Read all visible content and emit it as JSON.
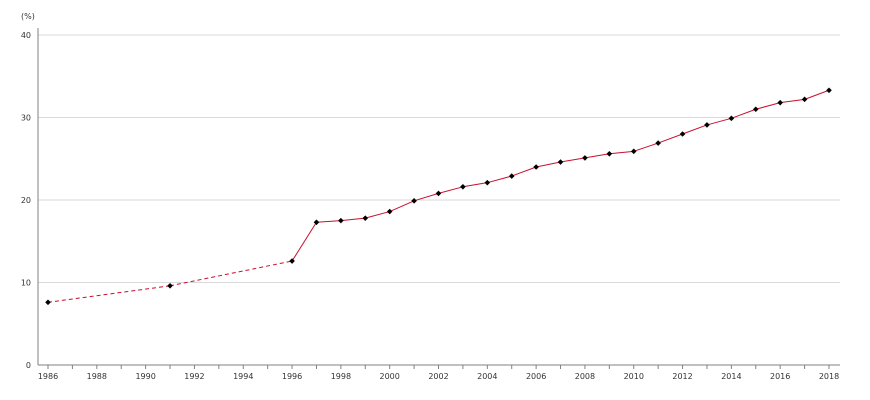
{
  "chart_data": {
    "type": "line",
    "title": "",
    "xlabel": "",
    "ylabel": "(%)",
    "xlim": [
      1986,
      2018
    ],
    "ylim": [
      0,
      40
    ],
    "x_ticks": [
      "1986",
      "1988",
      "1990",
      "1992",
      "1994",
      "1996",
      "1998",
      "2000",
      "2002",
      "2004",
      "2006",
      "2008",
      "2010",
      "2012",
      "2014",
      "2016",
      "2018"
    ],
    "y_ticks": [
      "0",
      "10",
      "20",
      "30",
      "40"
    ],
    "grid": "horizontal",
    "legend": "none",
    "series": [
      {
        "color": "#c8102e",
        "marker_color": "#000000",
        "marker": "diamond",
        "dashed_until_x": 1996,
        "x": [
          1986,
          1991,
          1996,
          1997,
          1998,
          1999,
          2000,
          2001,
          2002,
          2003,
          2004,
          2005,
          2006,
          2007,
          2008,
          2009,
          2010,
          2011,
          2012,
          2013,
          2014,
          2015,
          2016,
          2017,
          2018
        ],
        "y": [
          7.6,
          9.6,
          12.6,
          17.3,
          17.5,
          17.8,
          18.6,
          19.9,
          20.8,
          21.6,
          22.1,
          22.9,
          24.0,
          24.6,
          25.1,
          25.6,
          25.9,
          26.9,
          28.0,
          29.1,
          29.9,
          31.0,
          31.8,
          32.2,
          33.3
        ]
      }
    ]
  }
}
